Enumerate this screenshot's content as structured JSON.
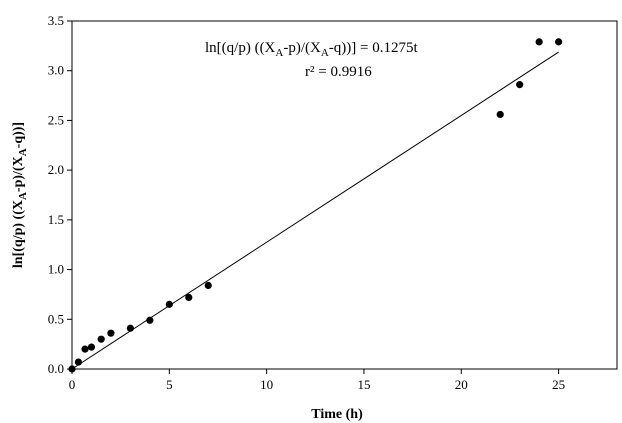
{
  "chart_data": {
    "type": "scatter",
    "xlabel": "Time (h)",
    "ylabel": "ln[(q/p) ((X_A-p)/(X_A-q))]",
    "xlim": [
      0,
      28
    ],
    "ylim": [
      0,
      3.5
    ],
    "x_ticks": [
      "0",
      "5",
      "10",
      "15",
      "20",
      "25"
    ],
    "y_ticks": [
      "0.0",
      "0.5",
      "1.0",
      "1.5",
      "2.0",
      "2.5",
      "3.0",
      "3.5"
    ],
    "x_tick_values": [
      0,
      5,
      10,
      15,
      20,
      25
    ],
    "y_tick_values": [
      0,
      0.5,
      1.0,
      1.5,
      2.0,
      2.5,
      3.0,
      3.5
    ],
    "grid": false,
    "points": [
      {
        "x": 0,
        "y": 0.0
      },
      {
        "x": 0.33,
        "y": 0.07
      },
      {
        "x": 0.67,
        "y": 0.2
      },
      {
        "x": 1,
        "y": 0.22
      },
      {
        "x": 1.5,
        "y": 0.3
      },
      {
        "x": 2,
        "y": 0.36
      },
      {
        "x": 3,
        "y": 0.41
      },
      {
        "x": 4,
        "y": 0.49
      },
      {
        "x": 5,
        "y": 0.65
      },
      {
        "x": 6,
        "y": 0.72
      },
      {
        "x": 7,
        "y": 0.84
      },
      {
        "x": 22,
        "y": 2.56
      },
      {
        "x": 23,
        "y": 2.86
      },
      {
        "x": 24,
        "y": 3.29
      },
      {
        "x": 25,
        "y": 3.29
      }
    ],
    "fit": {
      "slope": 0.1275,
      "x_range": [
        0,
        25
      ]
    },
    "annotation": {
      "equation": "ln[(q/p) ((X_A-p)/(X_A-q))]  = 0.1275t",
      "r2": "r² = 0.9916"
    }
  }
}
